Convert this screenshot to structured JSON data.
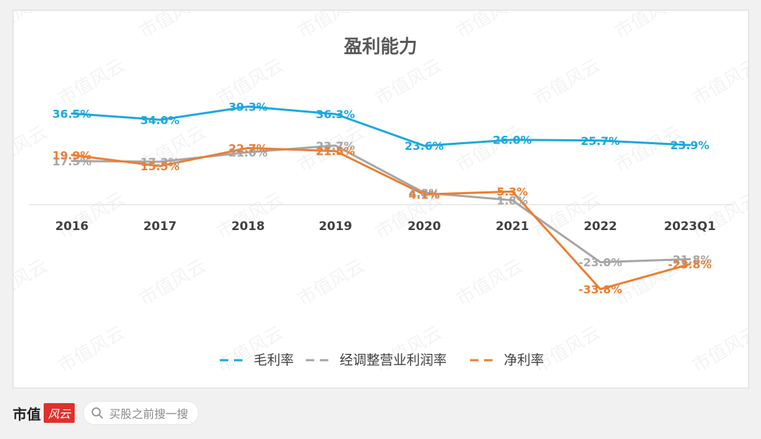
{
  "chart_data": {
    "type": "line",
    "title": "盈利能力",
    "categories": [
      "2016",
      "2017",
      "2018",
      "2019",
      "2020",
      "2021",
      "2022",
      "2023Q1"
    ],
    "ylim": [
      -40,
      45
    ],
    "grid": false,
    "legend_position": "bottom",
    "series": [
      {
        "name": "毛利率",
        "color": "#1aa8e0",
        "values": [
          36.5,
          34.0,
          39.3,
          36.3,
          23.6,
          26.0,
          25.7,
          23.9
        ],
        "labels": [
          "36.5%",
          "34.0%",
          "39.3%",
          "36.3%",
          "23.6%",
          "26.0%",
          "25.7%",
          "23.9%"
        ]
      },
      {
        "name": "经调整营业利润率",
        "color": "#a6a6a6",
        "values": [
          17.5,
          17.2,
          21.0,
          23.7,
          4.8,
          1.8,
          -23.0,
          -21.8
        ],
        "labels": [
          "17.5%",
          "17.2%",
          "21.0%",
          "23.7%",
          "4.8%",
          "1.8%",
          "-23.0%",
          "-21.8%"
        ]
      },
      {
        "name": "净利率",
        "color": "#ed7d31",
        "values": [
          19.9,
          15.5,
          22.7,
          21.5,
          4.1,
          5.3,
          -33.8,
          -23.8
        ],
        "labels": [
          "19.9%",
          "15.5%",
          "22.7%",
          "21.5%",
          "4.1%",
          "5.3%",
          "-33.8%",
          "-23.8%"
        ]
      }
    ]
  },
  "watermark": "市值风云",
  "footer": {
    "brand_text": "市值",
    "brand_stamp": "风云",
    "search_placeholder": "买股之前搜一搜"
  }
}
